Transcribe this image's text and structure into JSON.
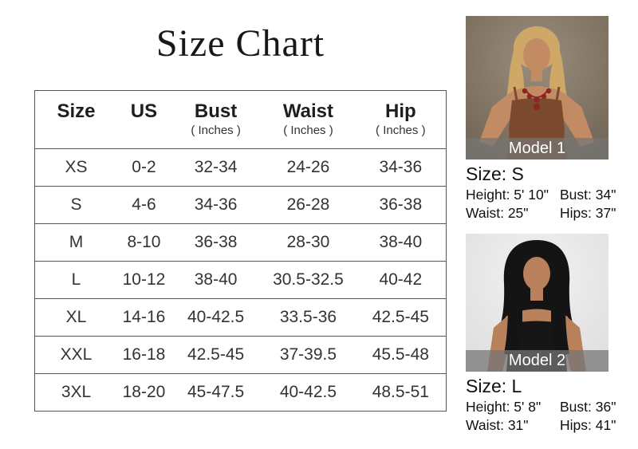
{
  "title": "Size Chart",
  "table": {
    "headers": [
      {
        "label": "Size",
        "sub": ""
      },
      {
        "label": "US",
        "sub": ""
      },
      {
        "label": "Bust",
        "sub": "( Inches )"
      },
      {
        "label": "Waist",
        "sub": "( Inches )"
      },
      {
        "label": "Hip",
        "sub": "( Inches )"
      }
    ],
    "rows": [
      [
        "XS",
        "0-2",
        "32-34",
        "24-26",
        "34-36"
      ],
      [
        "S",
        "4-6",
        "34-36",
        "26-28",
        "36-38"
      ],
      [
        "M",
        "8-10",
        "36-38",
        "28-30",
        "38-40"
      ],
      [
        "L",
        "10-12",
        "38-40",
        "30.5-32.5",
        "40-42"
      ],
      [
        "XL",
        "14-16",
        "40-42.5",
        "33.5-36",
        "42.5-45"
      ],
      [
        "XXL",
        "16-18",
        "42.5-45",
        "37-39.5",
        "45.5-48"
      ],
      [
        "3XL",
        "18-20",
        "45-47.5",
        "40-42.5",
        "48.5-51"
      ]
    ]
  },
  "models": [
    {
      "caption": "Model 1",
      "size_label": "Size: S",
      "height": "Height: 5' 10\"",
      "bust": "Bust: 34\"",
      "waist": "Waist: 25\"",
      "hips": "Hips: 37\"",
      "colors": {
        "background": "#9a8d7d",
        "background_dark": "#6e6252",
        "hair": "#cfa868",
        "skin": "#c28b64",
        "top": "#7b4a2e",
        "necklace": "#8c2626"
      }
    },
    {
      "caption": "Model 2",
      "size_label": "Size: L",
      "height": "Height: 5' 8\"",
      "bust": "Bust: 36\"",
      "waist": "Waist: 31\"",
      "hips": "Hips: 41\"",
      "colors": {
        "background": "#f1f1f1",
        "background_dark": "#dcdcdc",
        "hair": "#141414",
        "skin": "#b9805c",
        "top": "#161616"
      }
    }
  ]
}
